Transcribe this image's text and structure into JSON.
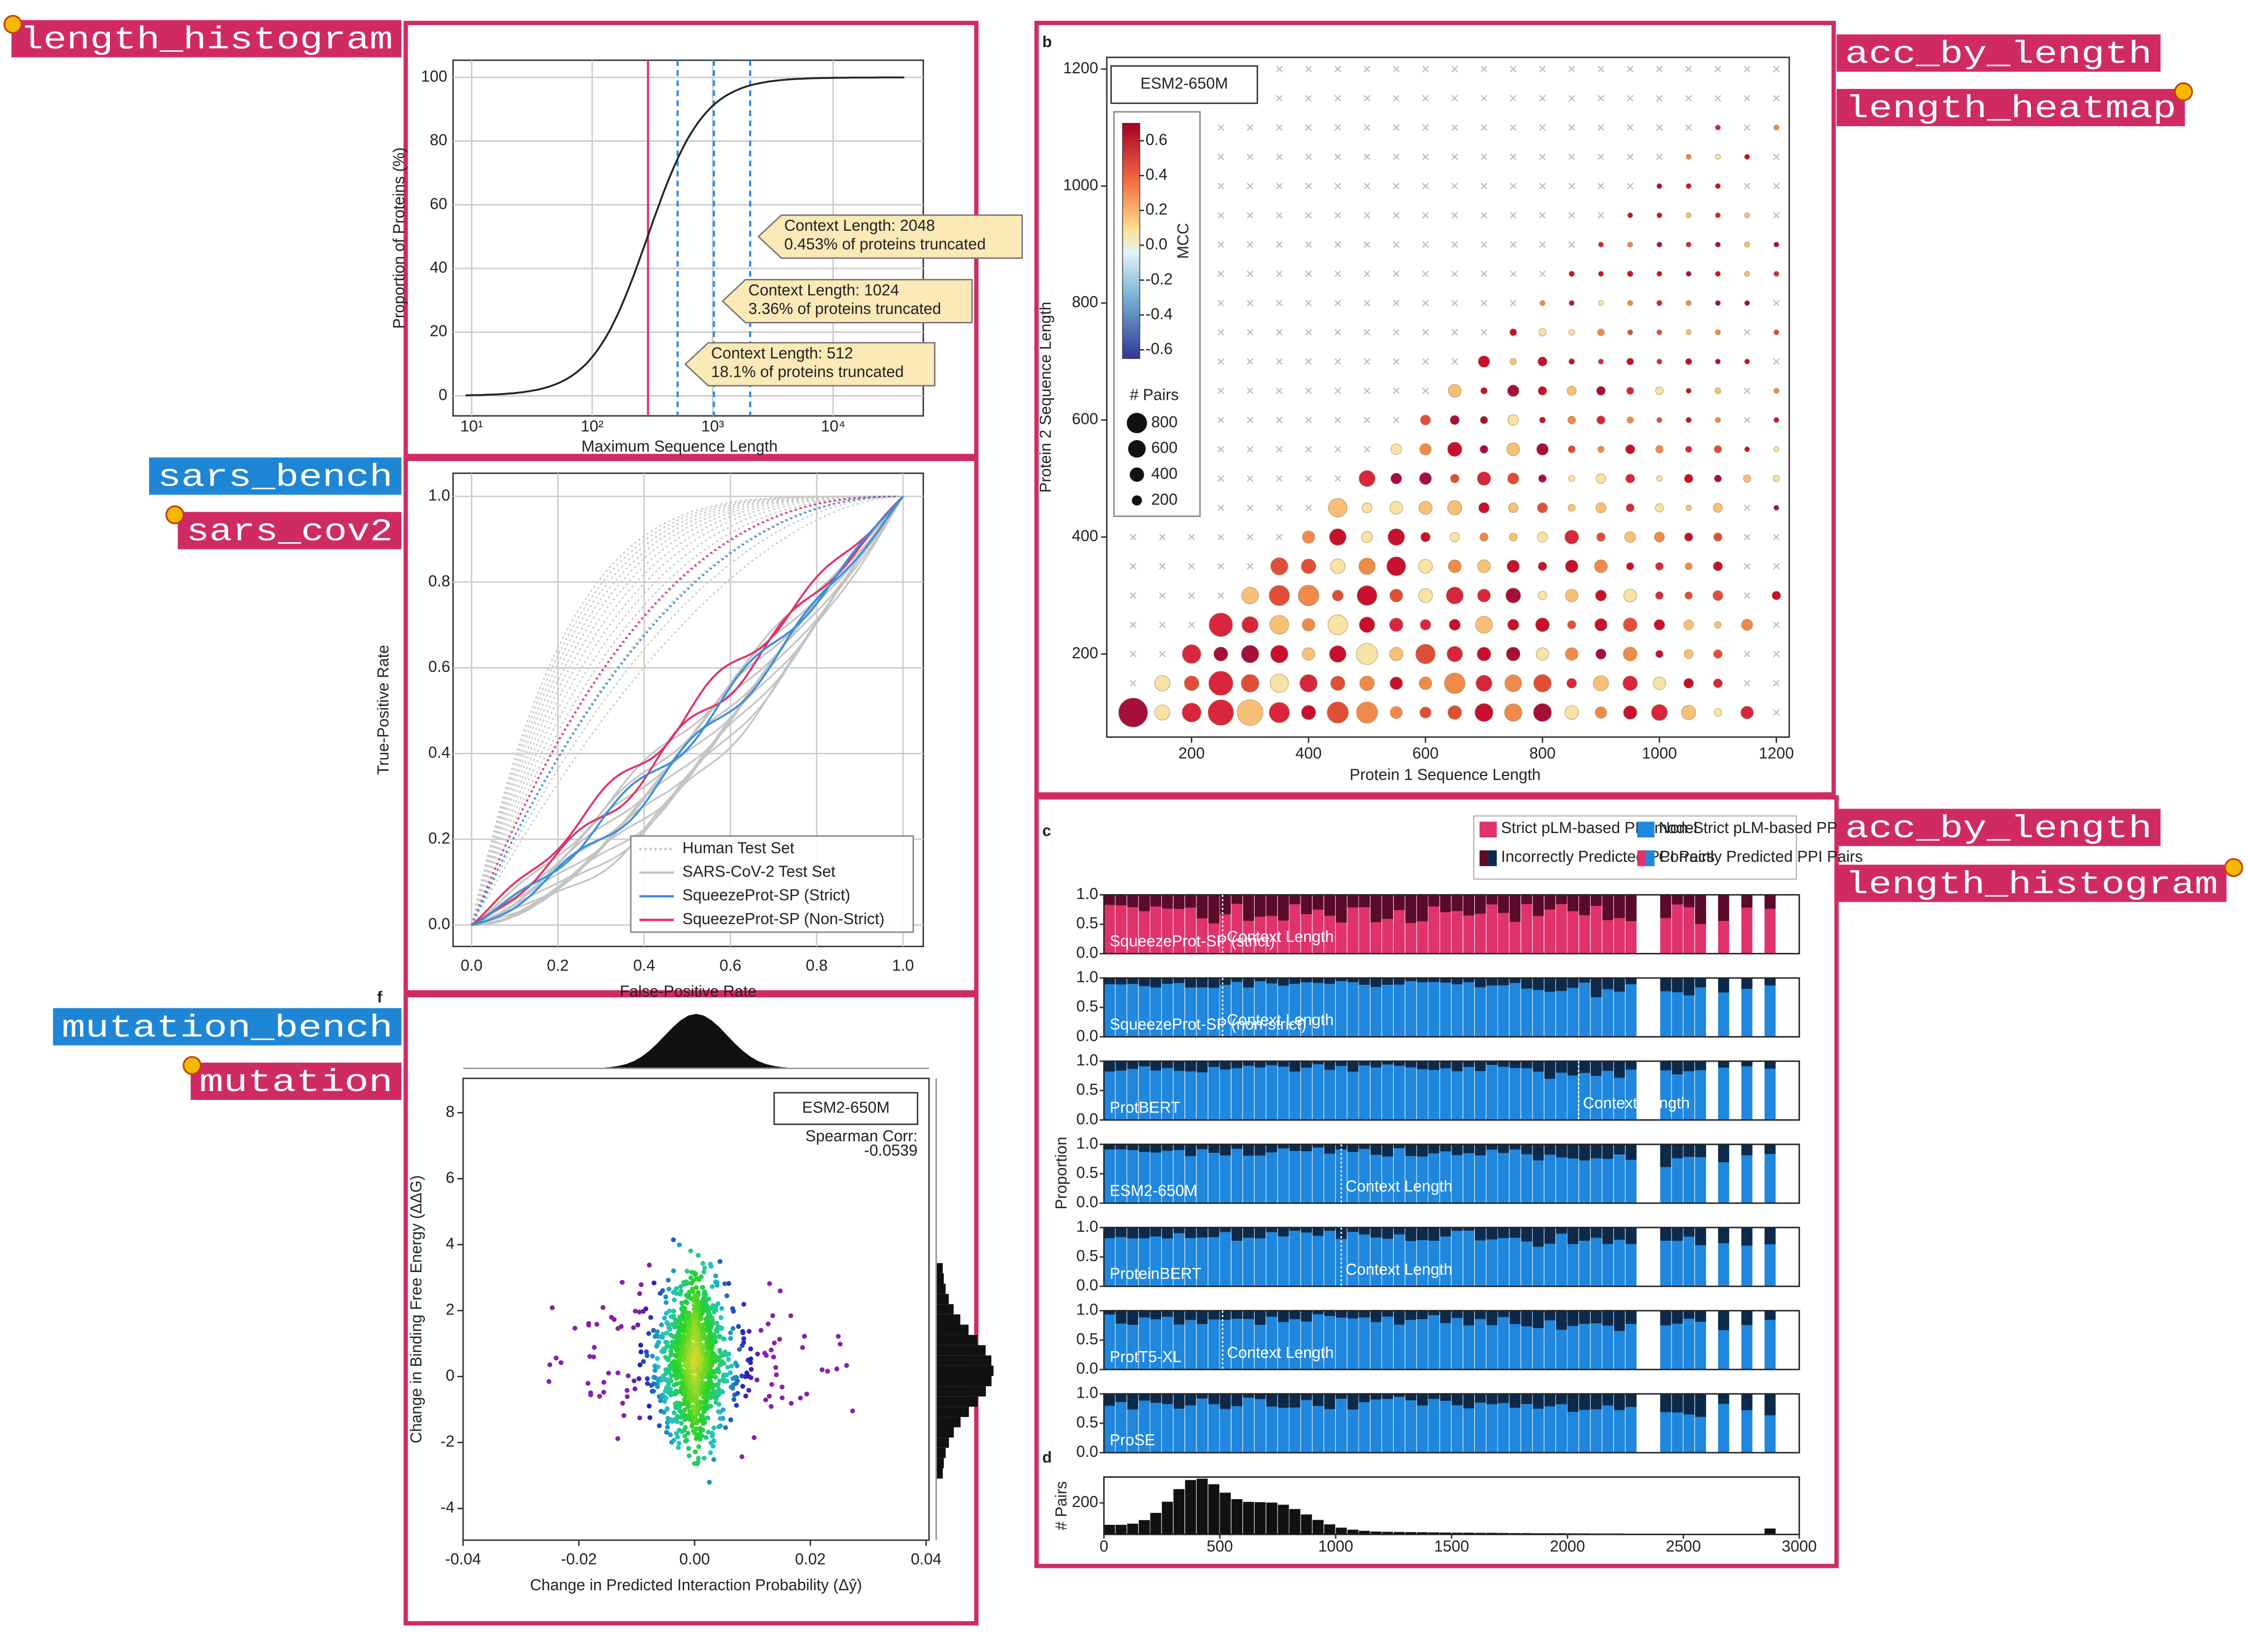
{
  "tags": [
    {
      "text": "length_histogram",
      "color": "#d02a64"
    },
    {
      "text": "sars_bench",
      "color": "#1f86d6"
    },
    {
      "text": "sars_cov2",
      "color": "#d02a64"
    },
    {
      "text": "mutation_bench",
      "color": "#1f86d6"
    },
    {
      "text": "mutation",
      "color": "#d02a64"
    },
    {
      "text": "acc_by_length",
      "color": "#d02a64"
    },
    {
      "text": "length_heatmap",
      "color": "#d02a64"
    },
    {
      "text": "acc_by_length",
      "color": "#d02a64"
    },
    {
      "text": "length_histogram",
      "color": "#d02a64"
    }
  ],
  "cdf": {
    "xlabel": "Maximum Sequence Length",
    "ylabel": "Proportion of Proteins (%)",
    "log_x": true,
    "grid": true,
    "xlim": [
      7,
      56000
    ],
    "ylim": [
      -6.3,
      105.4
    ],
    "xticks": [
      {
        "value": 10,
        "label": "10¹"
      },
      {
        "value": 100,
        "label": "10²"
      },
      {
        "value": 1000,
        "label": "10³"
      },
      {
        "value": 10000,
        "label": "10⁴"
      }
    ],
    "yticks": [
      0,
      20,
      40,
      60,
      80,
      100
    ],
    "context_lengths": [
      512,
      1024,
      2048
    ],
    "callouts": [
      {
        "title": "Context Length: 512",
        "text": "18.1% of proteins truncated"
      },
      {
        "title": "Context Length: 1024",
        "text": "3.36% of proteins truncated"
      },
      {
        "title": "Context Length: 2048",
        "text": "0.453% of proteins truncated"
      }
    ]
  },
  "roc": {
    "xlabel": "False-Positive Rate",
    "ylabel": "True-Positive Rate",
    "grid": true,
    "xlim": [
      -0.043,
      1.047
    ],
    "ylim": [
      -0.05,
      1.054
    ],
    "xticks": [
      {
        "value": 0,
        "label": "0.0"
      },
      0.2,
      0.4,
      0.6,
      0.8,
      {
        "value": 1,
        "label": "1.0"
      }
    ],
    "yticks": [
      {
        "value": 0,
        "label": "0.0"
      },
      0.2,
      0.4,
      0.6,
      0.8,
      {
        "value": 1,
        "label": "1.0"
      }
    ],
    "legend": [
      {
        "name": "Human Test Set",
        "color": "#c4c4c4",
        "style": "dotted"
      },
      {
        "name": "SARS-CoV-2 Test Set",
        "color": "#c4c4c4",
        "style": "solid"
      },
      {
        "name": "SqueezeProt-SP (Strict)",
        "color": "#3b8fdb",
        "style": "solid"
      },
      {
        "name": "SqueezeProt-SP (Non-Strict)",
        "color": "#e03467",
        "style": "solid"
      }
    ]
  },
  "mutation": {
    "letter": "f",
    "title": "ESM2-650M",
    "stat_label": "Spearman Corr:",
    "stat_value": -0.0539,
    "xlabel": "Change in Predicted Interaction Probability (Δŷ)",
    "ylabel": "Change in Binding Free Energy (ΔΔG)",
    "xlim": [
      -0.04,
      0.0405
    ],
    "ylim": [
      -4.96,
      9.04
    ],
    "xticks": [
      -0.04,
      -0.02,
      {
        "value": 0,
        "label": "0.00"
      },
      0.02,
      0.04
    ],
    "yticks": [
      -4,
      -2,
      0,
      2,
      4,
      6,
      8
    ]
  },
  "heatmap": {
    "letter": "b",
    "title": "ESM2-650M",
    "xlabel": "Protein 1 Sequence Length",
    "ylabel": "Protein 2 Sequence Length",
    "xlim": [
      55,
      1222
    ],
    "ylim": [
      58,
      1220
    ],
    "xticks": [
      200,
      400,
      600,
      800,
      1000,
      1200
    ],
    "yticks": [
      200,
      400,
      600,
      800,
      1000,
      1200
    ],
    "colorbar": {
      "label": "MCC",
      "lim": [
        -0.65,
        0.7
      ],
      "ticks": [
        0.6,
        0.4,
        0.2,
        {
          "value": 0,
          "label": "0.0"
        },
        -0.2,
        -0.4,
        -0.6
      ]
    },
    "sizes": {
      "label": "# Pairs",
      "ticks": [
        800,
        600,
        400,
        200
      ]
    }
  },
  "accuracy": {
    "letter": "c",
    "ylabel": "Proportion",
    "xlim": [
      0,
      3000
    ],
    "ylim": [
      0,
      1
    ],
    "yticks": [
      {
        "value": 0,
        "label": "0.0"
      },
      {
        "value": 0.5,
        "label": "0.5"
      },
      {
        "value": 1,
        "label": "1.0"
      }
    ],
    "legend": [
      "Strict pLM-based PPI model",
      "Non-Strict pLM-based PPI model",
      "Incorrectly Predicted PPI Pairs",
      "Correctly Predicted PPI Pairs"
    ],
    "rows": [
      {
        "name": "SqueezeProt-SP (strict)",
        "context_length": 512,
        "context_label": "Context Length"
      },
      {
        "name": "SqueezeProt-SP (non-strict)",
        "context_length": 512,
        "context_label": "Context Length"
      },
      {
        "name": "ProtBERT",
        "context_length": 2048,
        "context_label": "Context Length"
      },
      {
        "name": "ESM2-650M",
        "context_length": 1024,
        "context_label": "Context Length"
      },
      {
        "name": "ProteinBERT",
        "context_length": 1024,
        "context_label": "Context Length"
      },
      {
        "name": "ProtT5-XL",
        "context_length": 512,
        "context_label": "Context Length"
      },
      {
        "name": "ProSE"
      }
    ]
  },
  "pairs": {
    "letter": "d",
    "ylabel": "# Pairs",
    "xlim": [
      0,
      3000
    ],
    "ylim": [
      0,
      364
    ],
    "yticks": [
      200
    ],
    "xticks": [
      0,
      500,
      1000,
      1500,
      2000,
      2500,
      3000
    ]
  }
}
